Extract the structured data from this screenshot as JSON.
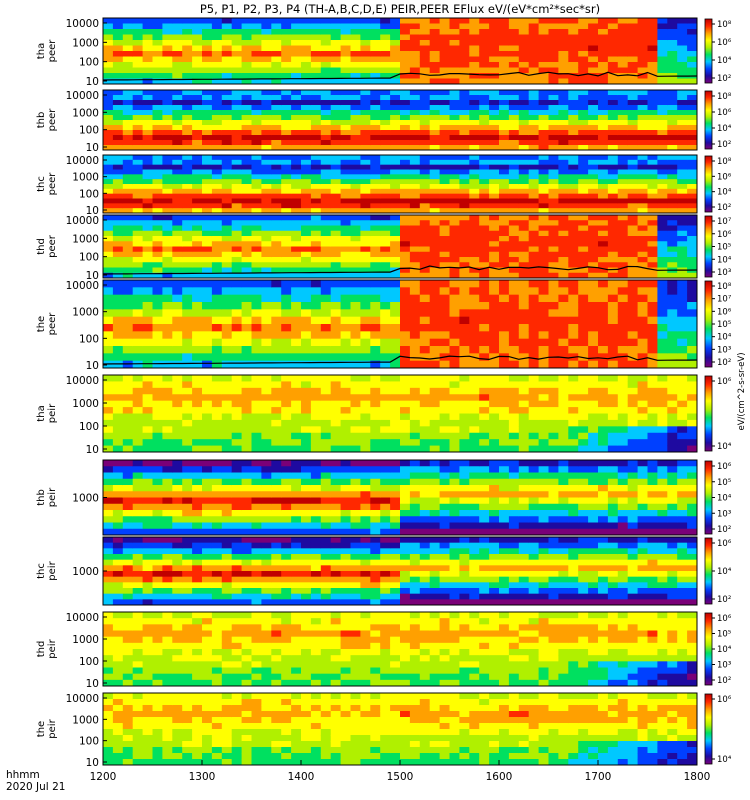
{
  "chart_data": {
    "type": "heatmap",
    "title": "P5, P1, P2, P3, P4 (TH-A,B,C,D,E) PEIR,PEER EFlux eV/(eV*cm²*sec*sr)",
    "xaxis": {
      "label": "hhmm",
      "date": "2020 Jul 21",
      "range": [
        1200,
        1800
      ],
      "ticks": [
        "1200",
        "1300",
        "1400",
        "1500",
        "1600",
        "1700",
        "1800"
      ]
    },
    "zunits": "eV/(cm^2-s-sr-eV)",
    "colormap": [
      "#7a0078",
      "#1e0aa0",
      "#0040ff",
      "#00c8ff",
      "#00e060",
      "#b0f000",
      "#ffff00",
      "#ffa000",
      "#ff2800",
      "#c00000"
    ],
    "panels": [
      {
        "name": "peer-tha",
        "ylabel": [
          "tha",
          "peer"
        ],
        "yticks": [
          "10",
          "100",
          "1000",
          "10000"
        ],
        "cbar_ticks": [
          "10²",
          "10⁴",
          "10⁶",
          "10⁸"
        ],
        "zrange": [
          1,
          8
        ],
        "profile": "peer_event",
        "density_event": 0.35,
        "potential_line": true
      },
      {
        "name": "peer-thb",
        "ylabel": [
          "thb",
          "peer"
        ],
        "yticks": [
          "10",
          "100",
          "1000",
          "10000"
        ],
        "cbar_ticks": [
          "10²",
          "10⁴",
          "10⁶",
          "10⁸"
        ],
        "zrange": [
          1,
          8
        ],
        "profile": "peer_quiet",
        "density_event": 0,
        "potential_line": false
      },
      {
        "name": "peer-thc",
        "ylabel": [
          "thc",
          "peer"
        ],
        "yticks": [
          "10",
          "100",
          "1000",
          "10000"
        ],
        "cbar_ticks": [
          "10²",
          "10⁴",
          "10⁶",
          "10⁸"
        ],
        "zrange": [
          1,
          8
        ],
        "profile": "peer_quiet",
        "density_event": 0,
        "potential_line": false
      },
      {
        "name": "peer-thd",
        "ylabel": [
          "thd",
          "peer"
        ],
        "yticks": [
          "10",
          "100",
          "1000",
          "10000"
        ],
        "cbar_ticks": [
          "10³",
          "10⁴",
          "10⁵",
          "10⁶",
          "10⁷"
        ],
        "zrange": [
          2,
          7.5
        ],
        "profile": "peer_event",
        "density_event": 0.3,
        "potential_line": true
      },
      {
        "name": "peer-the",
        "ylabel": [
          "the",
          "peer"
        ],
        "yticks": [
          "10",
          "100",
          "1000",
          "10000"
        ],
        "cbar_ticks": [
          "10²",
          "10³",
          "10⁴",
          "10⁵",
          "10⁶",
          "10⁷",
          "10⁸"
        ],
        "zrange": [
          1.5,
          8.5
        ],
        "profile": "peer_event",
        "density_event": 0.4,
        "potential_line": true
      },
      {
        "name": "peir-tha",
        "ylabel": [
          "tha",
          "peir"
        ],
        "yticks": [
          "10",
          "100",
          "1000",
          "10000"
        ],
        "cbar_ticks": [
          "10⁴",
          "10⁶"
        ],
        "zrange": [
          3,
          7
        ],
        "profile": "peir",
        "density_event": 0.1,
        "potential_line": false
      },
      {
        "name": "peir-thb",
        "ylabel": [
          "thb",
          "peir"
        ],
        "yticks": [
          "1000"
        ],
        "cbar_ticks": [
          "10²",
          "10³",
          "10⁴",
          "10⁵",
          "10⁶"
        ],
        "zrange": [
          1.5,
          6.5
        ],
        "profile": "peir_band",
        "density_event": 0,
        "potential_line": false
      },
      {
        "name": "peir-thc",
        "ylabel": [
          "thc",
          "peir"
        ],
        "yticks": [
          "1000"
        ],
        "cbar_ticks": [
          "10²",
          "10⁴",
          "10⁶"
        ],
        "zrange": [
          1.5,
          6.5
        ],
        "profile": "peir_band",
        "density_event": 0,
        "potential_line": false
      },
      {
        "name": "peir-thd",
        "ylabel": [
          "thd",
          "peir"
        ],
        "yticks": [
          "10",
          "100",
          "1000",
          "10000"
        ],
        "cbar_ticks": [
          "10²",
          "10³",
          "10⁴",
          "10⁵",
          "10⁶"
        ],
        "zrange": [
          1.5,
          6.5
        ],
        "profile": "peir",
        "density_event": 0.2,
        "potential_line": false
      },
      {
        "name": "peir-the",
        "ylabel": [
          "the",
          "peir"
        ],
        "yticks": [
          "10",
          "100",
          "1000",
          "10000"
        ],
        "cbar_ticks": [
          "10⁴",
          "10⁶"
        ],
        "zrange": [
          3,
          7
        ],
        "profile": "peir",
        "density_event": 0.15,
        "potential_line": false
      }
    ]
  }
}
